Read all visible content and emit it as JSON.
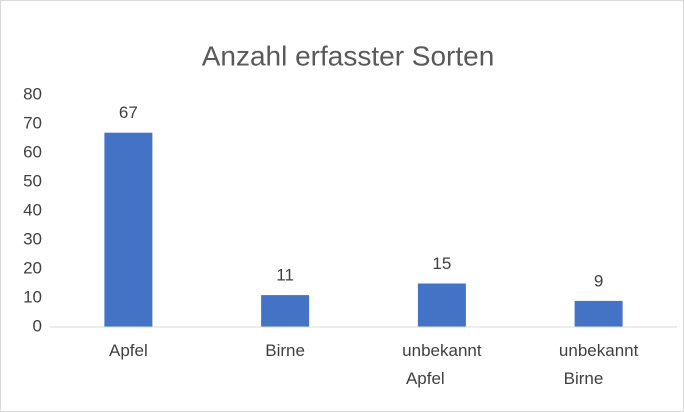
{
  "chart_data": {
    "type": "bar",
    "title": "Anzahl erfasster Sorten",
    "categories": [
      "Apfel",
      "Birne",
      "unbekannt Apfel",
      "unbekannt Birne"
    ],
    "values": [
      67,
      11,
      15,
      9
    ],
    "color": "#4472c4",
    "ylim": [
      0,
      80
    ],
    "yticks": [
      0,
      10,
      20,
      30,
      40,
      50,
      60,
      70,
      80
    ],
    "grid": false
  }
}
